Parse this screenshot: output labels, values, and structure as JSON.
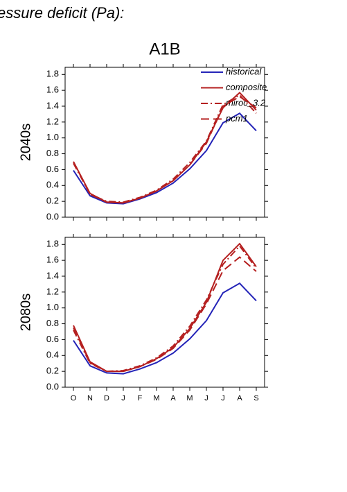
{
  "header": {
    "title": "essure deficit (Pa):",
    "subtitle": "A1B"
  },
  "chart_data": [
    {
      "type": "line",
      "ylabel": "2040s",
      "legend": "upper right",
      "categories": [
        null,
        null,
        null,
        null,
        null,
        null,
        null,
        null,
        null,
        null,
        null,
        null
      ],
      "ylim": [
        0,
        1.89
      ],
      "yticks": [
        {
          "value": 0,
          "label": "0.0"
        },
        0.2,
        0.4,
        0.6,
        0.8,
        {
          "value": 1,
          "label": "1.0"
        },
        1.2,
        1.4,
        1.6,
        1.8
      ],
      "series": [
        {
          "name": "historical",
          "color": "#2424b8",
          "dash": "solid",
          "values": [
            0.59,
            0.27,
            0.18,
            0.17,
            0.23,
            0.31,
            0.43,
            0.61,
            0.84,
            1.19,
            1.31,
            1.09
          ]
        },
        {
          "name": "composite",
          "color": "#b52020",
          "dash": "solid",
          "values": [
            0.7,
            0.3,
            0.19,
            0.18,
            0.24,
            0.33,
            0.46,
            0.66,
            0.95,
            1.38,
            1.57,
            1.35
          ]
        },
        {
          "name": "miroc_3.2",
          "color": "#b52020",
          "dash": "dashdot",
          "values": [
            0.68,
            0.29,
            0.2,
            0.19,
            0.25,
            0.34,
            0.48,
            0.69,
            0.96,
            1.42,
            1.54,
            1.31
          ]
        },
        {
          "name": "pcm1",
          "color": "#b52020",
          "dash": "longdash",
          "values": [
            0.7,
            0.29,
            0.19,
            0.18,
            0.24,
            0.33,
            0.46,
            0.66,
            0.93,
            1.4,
            1.52,
            1.38
          ]
        }
      ]
    },
    {
      "type": "line",
      "ylabel": "2080s",
      "categories": [
        "O",
        "N",
        "D",
        "J",
        "F",
        "M",
        "A",
        "M",
        "J",
        "J",
        "A",
        "S"
      ],
      "ylim": [
        0,
        1.89
      ],
      "yticks": [
        {
          "value": 0,
          "label": "0.0"
        },
        0.2,
        0.4,
        0.6,
        0.8,
        {
          "value": 1,
          "label": "1.0"
        },
        1.2,
        1.4,
        1.6,
        1.8
      ],
      "series": [
        {
          "color": "#2424b8",
          "dash": "solid",
          "values": [
            0.59,
            0.27,
            0.18,
            0.17,
            0.23,
            0.31,
            0.43,
            0.61,
            0.84,
            1.19,
            1.31,
            1.09
          ]
        },
        {
          "color": "#b52020",
          "dash": "solid",
          "values": [
            0.78,
            0.32,
            0.2,
            0.2,
            0.26,
            0.36,
            0.5,
            0.74,
            1.07,
            1.6,
            1.81,
            1.52
          ]
        },
        {
          "color": "#b52020",
          "dash": "dashdot",
          "values": [
            0.72,
            0.3,
            0.2,
            0.21,
            0.27,
            0.37,
            0.52,
            0.77,
            1.1,
            1.55,
            1.78,
            1.5
          ]
        },
        {
          "color": "#b52020",
          "dash": "longdash",
          "values": [
            0.75,
            0.31,
            0.2,
            0.2,
            0.26,
            0.35,
            0.49,
            0.72,
            1.05,
            1.47,
            1.64,
            1.46
          ]
        }
      ]
    }
  ]
}
